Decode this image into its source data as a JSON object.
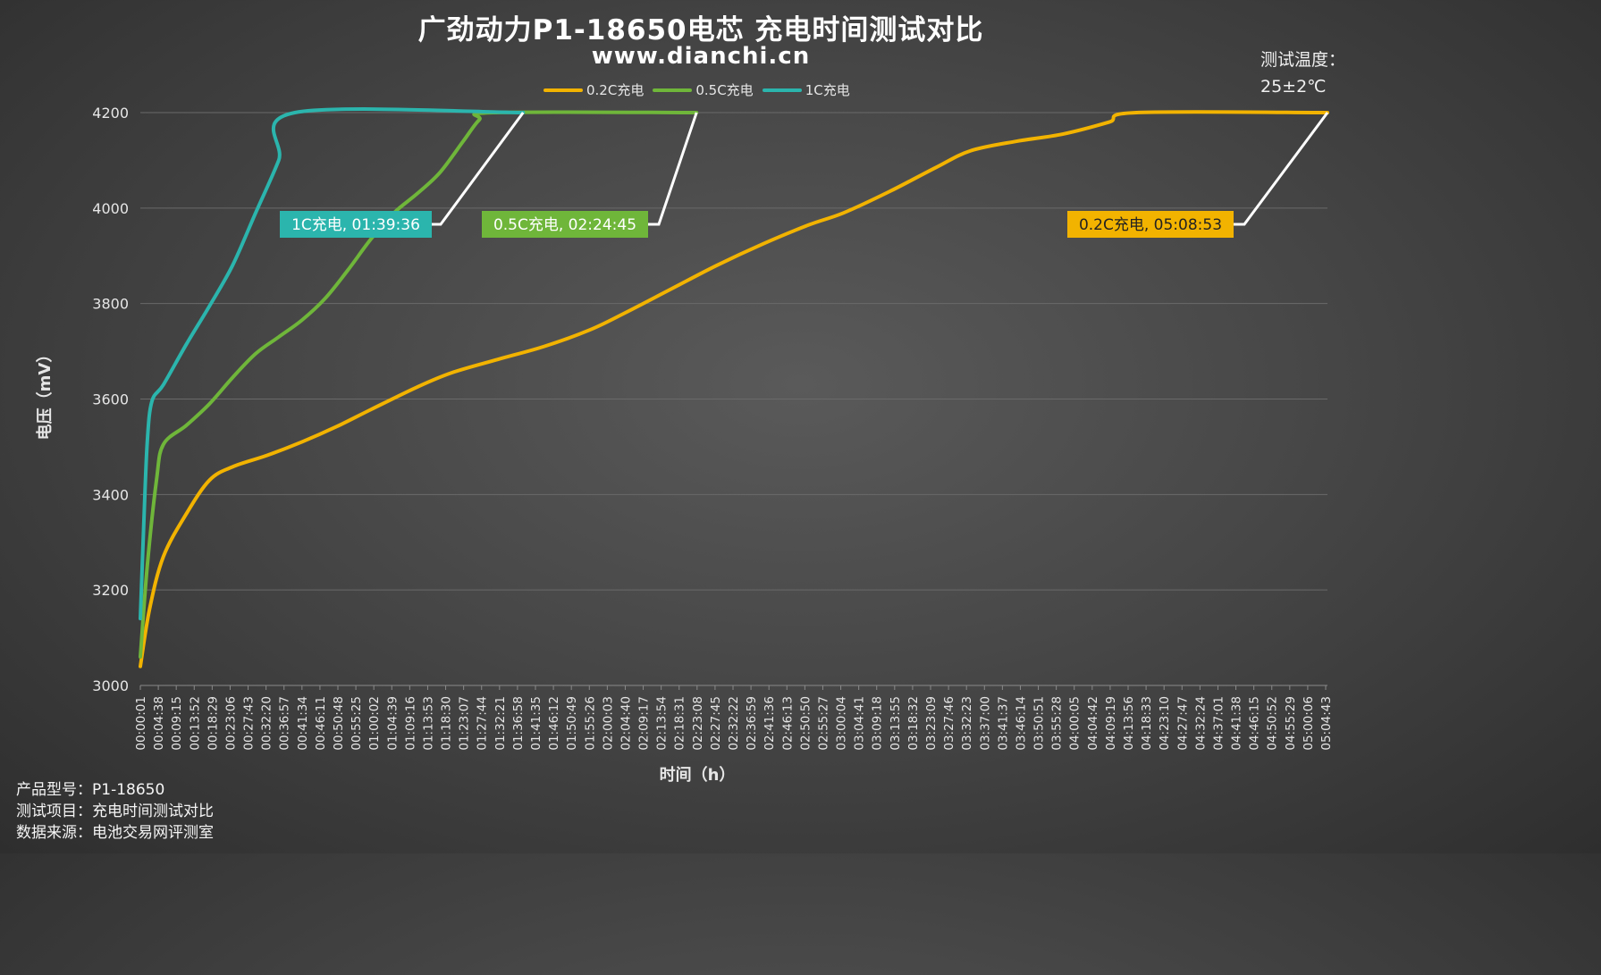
{
  "title": "广劲动力P1-18650电芯 充电时间测试对比",
  "subtitle": "www.dianchi.cn",
  "temperature": {
    "label": "测试温度：",
    "value": "25±2℃"
  },
  "footer": {
    "model": "产品型号：P1-18650",
    "item": "测试项目：充电时间测试对比",
    "source": "数据来源：电池交易网评测室"
  },
  "colors": {
    "s02": "#f2b300",
    "s05": "#6fb63a",
    "s1": "#2bb5ad",
    "grid": "#6a6a6a"
  },
  "chart_data": {
    "type": "line",
    "title": "广劲动力P1-18650电芯 充电时间测试对比",
    "xlabel": "时间（h）",
    "ylabel": "电压（mV）",
    "ylim": [
      3000,
      4200
    ],
    "yticks": [
      3000,
      3200,
      3400,
      3600,
      3800,
      4000,
      4200
    ],
    "grid": "horizontal",
    "legend_position": "top",
    "x_tick_labels": [
      "00:00:01",
      "00:04:38",
      "00:09:15",
      "00:13:52",
      "00:18:29",
      "00:23:06",
      "00:27:43",
      "00:32:20",
      "00:36:57",
      "00:41:34",
      "00:46:11",
      "00:50:48",
      "00:55:25",
      "01:00:02",
      "01:04:39",
      "01:09:16",
      "01:13:53",
      "01:18:30",
      "01:23:07",
      "01:27:44",
      "01:32:21",
      "01:36:58",
      "01:41:35",
      "01:46:12",
      "01:50:49",
      "01:55:26",
      "02:00:03",
      "02:04:40",
      "02:09:17",
      "02:13:54",
      "02:18:31",
      "02:23:08",
      "02:27:45",
      "02:32:22",
      "02:36:59",
      "02:41:36",
      "02:46:13",
      "02:50:50",
      "02:55:27",
      "03:00:04",
      "03:04:41",
      "03:09:18",
      "03:13:55",
      "03:18:32",
      "03:23:09",
      "03:27:46",
      "03:32:23",
      "03:37:00",
      "03:41:37",
      "03:46:14",
      "03:50:51",
      "03:55:28",
      "04:00:05",
      "04:04:42",
      "04:09:19",
      "04:13:56",
      "04:18:33",
      "04:23:10",
      "04:27:47",
      "04:32:24",
      "04:37:01",
      "04:41:38",
      "04:46:15",
      "04:50:52",
      "04:55:29",
      "05:00:06",
      "05:04:43"
    ],
    "x_unit": "hours",
    "xlim": [
      0,
      5.148
    ],
    "series": [
      {
        "name": "0.2C充电",
        "color_key": "s02",
        "label": "0.2C充电, 05:08:53",
        "points": [
          [
            0,
            3040
          ],
          [
            0.04,
            3160
          ],
          [
            0.1,
            3270
          ],
          [
            0.2,
            3360
          ],
          [
            0.3,
            3430
          ],
          [
            0.4,
            3458
          ],
          [
            0.55,
            3482
          ],
          [
            0.7,
            3510
          ],
          [
            0.85,
            3542
          ],
          [
            1.0,
            3578
          ],
          [
            1.2,
            3625
          ],
          [
            1.35,
            3655
          ],
          [
            1.55,
            3683
          ],
          [
            1.75,
            3710
          ],
          [
            1.95,
            3745
          ],
          [
            2.1,
            3780
          ],
          [
            2.3,
            3830
          ],
          [
            2.5,
            3880
          ],
          [
            2.7,
            3925
          ],
          [
            2.9,
            3965
          ],
          [
            3.05,
            3990
          ],
          [
            3.25,
            4035
          ],
          [
            3.45,
            4085
          ],
          [
            3.6,
            4120
          ],
          [
            3.8,
            4140
          ],
          [
            4.0,
            4155
          ],
          [
            4.2,
            4180
          ],
          [
            4.32,
            4200
          ],
          [
            5.148,
            4200
          ]
        ]
      },
      {
        "name": "0.5C充电",
        "color_key": "s05",
        "label": "0.5C充电, 02:24:45",
        "points": [
          [
            0,
            3060
          ],
          [
            0.03,
            3250
          ],
          [
            0.07,
            3430
          ],
          [
            0.1,
            3505
          ],
          [
            0.2,
            3545
          ],
          [
            0.3,
            3590
          ],
          [
            0.4,
            3645
          ],
          [
            0.5,
            3695
          ],
          [
            0.6,
            3730
          ],
          [
            0.7,
            3765
          ],
          [
            0.8,
            3810
          ],
          [
            0.9,
            3870
          ],
          [
            1.0,
            3935
          ],
          [
            1.1,
            3990
          ],
          [
            1.2,
            4030
          ],
          [
            1.3,
            4075
          ],
          [
            1.4,
            4140
          ],
          [
            1.47,
            4185
          ],
          [
            1.53,
            4200
          ],
          [
            2.412,
            4200
          ]
        ]
      },
      {
        "name": "1C充电",
        "color_key": "s1",
        "label": "1C充电, 01:39:36",
        "points": [
          [
            0,
            3140
          ],
          [
            0.015,
            3340
          ],
          [
            0.03,
            3510
          ],
          [
            0.05,
            3595
          ],
          [
            0.1,
            3630
          ],
          [
            0.2,
            3715
          ],
          [
            0.3,
            3795
          ],
          [
            0.4,
            3880
          ],
          [
            0.5,
            3990
          ],
          [
            0.6,
            4100
          ],
          [
            0.67,
            4200
          ],
          [
            1.66,
            4200
          ]
        ]
      }
    ]
  }
}
